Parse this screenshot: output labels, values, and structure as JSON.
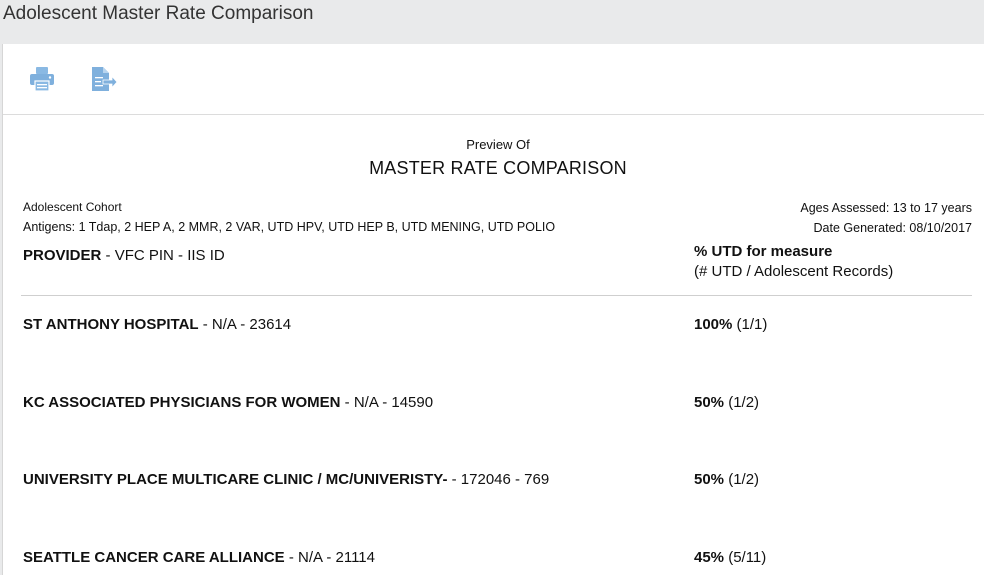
{
  "header": {
    "title": "Adolescent Master Rate Comparison"
  },
  "toolbar": {
    "print_icon": "printer-icon",
    "export_icon": "export-file-icon",
    "icon_color": "#7fb0dd"
  },
  "report": {
    "preview_of": "Preview Of",
    "title": "MASTER RATE COMPARISON",
    "cohort": "Adolescent Cohort",
    "antigens": "Antigens: 1 Tdap, 2 HEP A, 2 MMR, 2 VAR, UTD HPV, UTD HEP B, UTD MENING, UTD POLIO",
    "ages_assessed": "Ages Assessed: 13 to 17 years",
    "date_generated": "Date Generated: 08/10/2017",
    "columns": {
      "provider_bold": "PROVIDER",
      "provider_rest": " - VFC PIN - IIS ID",
      "rate_title": "% UTD for measure",
      "rate_subtitle": "(# UTD / Adolescent Records)"
    },
    "rows": [
      {
        "name": "ST ANTHONY HOSPITAL",
        "ids": " - N/A - 23614",
        "percent": "100%",
        "ratio": " (1/1)"
      },
      {
        "name": "KC ASSOCIATED PHYSICIANS FOR WOMEN",
        "ids": " - N/A - 14590",
        "percent": "50%",
        "ratio": " (1/2)"
      },
      {
        "name": "UNIVERSITY PLACE MULTICARE CLINIC / MC/UNIVERISTY-",
        "ids": " - 172046 - 769",
        "percent": "50%",
        "ratio": " (1/2)"
      },
      {
        "name": "SEATTLE CANCER CARE ALLIANCE",
        "ids": " - N/A - 21114",
        "percent": "45%",
        "ratio": " (5/11)"
      }
    ]
  }
}
